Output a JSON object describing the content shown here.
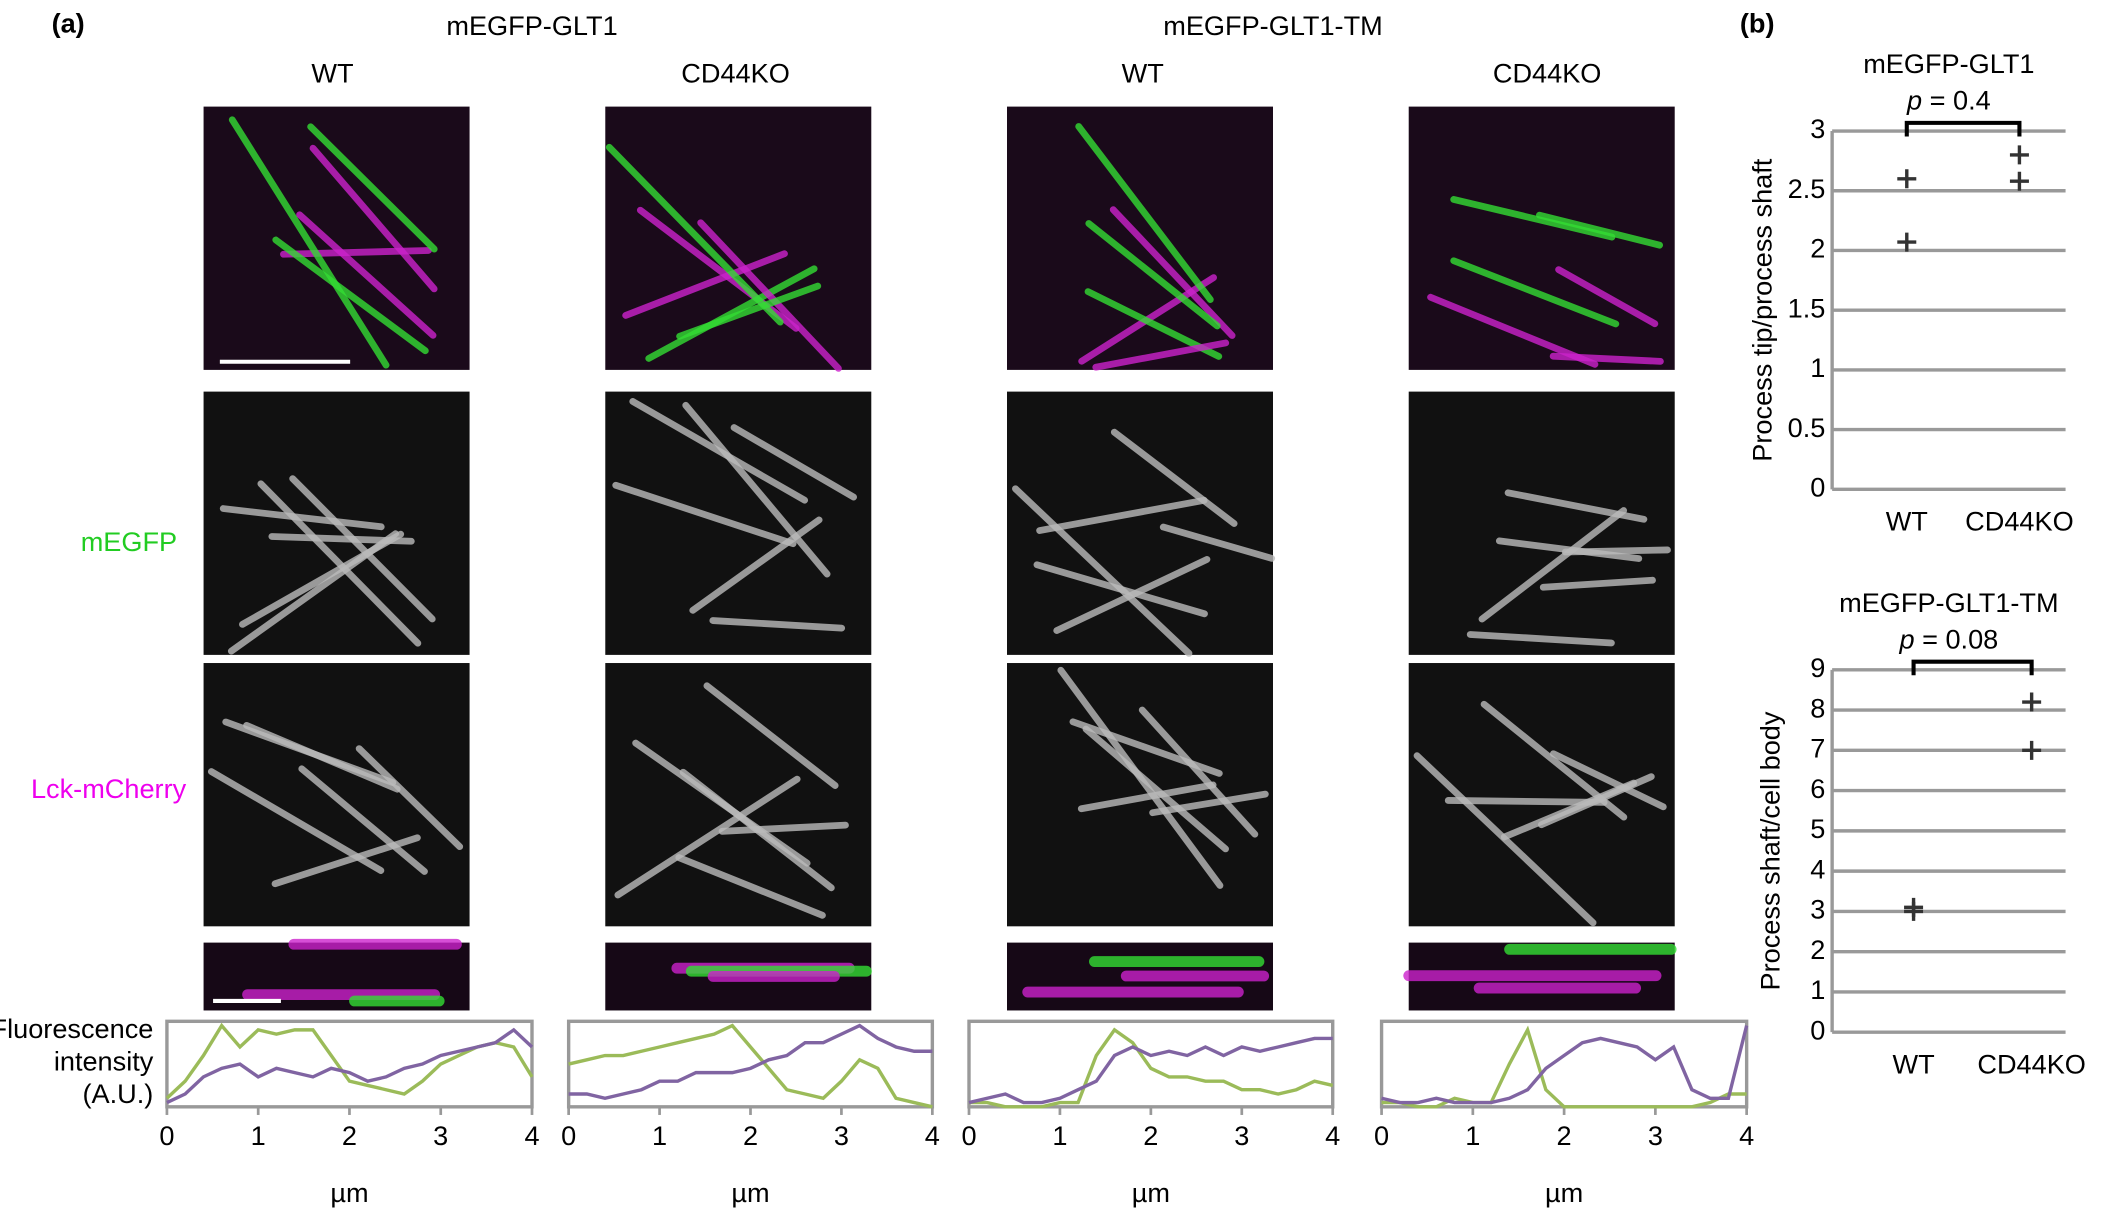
{
  "panel_labels": [
    "(a)",
    "(b)"
  ],
  "groups": [
    "mEGFP-GLT1",
    "mEGFP-GLT1-TM"
  ],
  "columns": [
    "WT",
    "CD44KO",
    "WT",
    "CD44KO"
  ],
  "rows": [
    "mEGFP",
    "Lck-mCherry"
  ],
  "chart_data": [
    {
      "type": "line",
      "ylabel": [
        "Fluorescence",
        "intensity",
        "(A.U.)"
      ],
      "xlabel": "µm",
      "x": [
        0,
        0.2,
        0.4,
        0.6,
        0.8,
        1,
        1.2,
        1.4,
        1.6,
        1.8,
        2,
        2.2,
        2.4,
        2.6,
        2.8,
        3,
        3.2,
        3.4,
        3.6,
        3.8,
        4
      ],
      "xlim": [
        0,
        4
      ],
      "xticks": [
        0,
        1,
        2,
        3,
        4
      ],
      "ylim": [
        0,
        1
      ],
      "series": [
        {
          "color": "#9bbb59",
          "values": [
            0.1,
            0.3,
            0.6,
            0.95,
            0.7,
            0.9,
            0.85,
            0.9,
            0.9,
            0.6,
            0.3,
            0.25,
            0.2,
            0.15,
            0.3,
            0.5,
            0.6,
            0.7,
            0.75,
            0.7,
            0.35
          ]
        },
        {
          "color": "#8064a2",
          "values": [
            0.05,
            0.15,
            0.35,
            0.45,
            0.5,
            0.35,
            0.45,
            0.4,
            0.35,
            0.45,
            0.4,
            0.3,
            0.35,
            0.45,
            0.5,
            0.6,
            0.65,
            0.7,
            0.75,
            0.9,
            0.7
          ]
        }
      ]
    },
    {
      "type": "line",
      "xlabel": "µm",
      "x": [
        0,
        0.2,
        0.4,
        0.6,
        0.8,
        1,
        1.2,
        1.4,
        1.6,
        1.8,
        2,
        2.2,
        2.4,
        2.6,
        2.8,
        3,
        3.2,
        3.4,
        3.6,
        3.8,
        4
      ],
      "xlim": [
        0,
        4
      ],
      "xticks": [
        0,
        1,
        2,
        3,
        4
      ],
      "ylim": [
        0,
        1
      ],
      "series": [
        {
          "color": "#9bbb59",
          "values": [
            0.5,
            0.55,
            0.6,
            0.6,
            0.65,
            0.7,
            0.75,
            0.8,
            0.85,
            0.95,
            0.7,
            0.45,
            0.2,
            0.15,
            0.1,
            0.3,
            0.55,
            0.45,
            0.1,
            0.05,
            0
          ]
        },
        {
          "color": "#8064a2",
          "values": [
            0.15,
            0.15,
            0.1,
            0.15,
            0.2,
            0.3,
            0.3,
            0.4,
            0.4,
            0.4,
            0.45,
            0.55,
            0.6,
            0.75,
            0.75,
            0.85,
            0.95,
            0.8,
            0.7,
            0.65,
            0.65
          ]
        }
      ]
    },
    {
      "type": "line",
      "xlabel": "µm",
      "x": [
        0,
        0.2,
        0.4,
        0.6,
        0.8,
        1,
        1.2,
        1.4,
        1.6,
        1.8,
        2,
        2.2,
        2.4,
        2.6,
        2.8,
        3,
        3.2,
        3.4,
        3.6,
        3.8,
        4
      ],
      "xlim": [
        0,
        4
      ],
      "xticks": [
        0,
        1,
        2,
        3,
        4
      ],
      "ylim": [
        0,
        1
      ],
      "series": [
        {
          "color": "#9bbb59",
          "values": [
            0.05,
            0.05,
            0,
            0,
            0,
            0.05,
            0.05,
            0.6,
            0.9,
            0.75,
            0.45,
            0.35,
            0.35,
            0.3,
            0.3,
            0.2,
            0.2,
            0.15,
            0.2,
            0.3,
            0.25
          ]
        },
        {
          "color": "#8064a2",
          "values": [
            0.05,
            0.1,
            0.15,
            0.05,
            0.05,
            0.1,
            0.2,
            0.3,
            0.6,
            0.7,
            0.6,
            0.65,
            0.6,
            0.7,
            0.6,
            0.7,
            0.65,
            0.7,
            0.75,
            0.8,
            0.8
          ]
        }
      ]
    },
    {
      "type": "line",
      "xlabel": "µm",
      "x": [
        0,
        0.2,
        0.4,
        0.6,
        0.8,
        1,
        1.2,
        1.4,
        1.6,
        1.8,
        2,
        2.2,
        2.4,
        2.6,
        2.8,
        3,
        3.2,
        3.4,
        3.6,
        3.8,
        4
      ],
      "xlim": [
        0,
        4
      ],
      "xticks": [
        0,
        1,
        2,
        3,
        4
      ],
      "ylim": [
        0,
        1
      ],
      "series": [
        {
          "color": "#9bbb59",
          "values": [
            0.05,
            0.05,
            0,
            0,
            0.1,
            0.05,
            0.05,
            0.5,
            0.9,
            0.2,
            0,
            0,
            0,
            0,
            0,
            0,
            0,
            0,
            0.05,
            0.15,
            0.15
          ]
        },
        {
          "color": "#8064a2",
          "values": [
            0.1,
            0.05,
            0.05,
            0.1,
            0.05,
            0.05,
            0.05,
            0.1,
            0.2,
            0.45,
            0.6,
            0.75,
            0.8,
            0.75,
            0.7,
            0.55,
            0.7,
            0.2,
            0.1,
            0.1,
            0.95
          ]
        }
      ]
    },
    {
      "type": "strip",
      "title": "mEGFP-GLT1",
      "annotation_symbol": "p",
      "annotation": "= 0.4",
      "ylabel": "Process tip/process shaft",
      "categories": [
        "WT",
        "CD44KO"
      ],
      "values": [
        [
          2.6,
          2.07
        ],
        [
          2.8,
          2.58
        ]
      ],
      "color": "#333333",
      "ylim": [
        0,
        3
      ],
      "yticks": [
        0,
        0.5,
        1,
        1.5,
        2,
        2.5,
        3
      ],
      "grid": true
    },
    {
      "type": "strip",
      "title": "mEGFP-GLT1-TM",
      "annotation_symbol": "p",
      "annotation": "= 0.08",
      "ylabel": "Process shaft/cell body",
      "categories": [
        "WT",
        "CD44KO"
      ],
      "values": [
        [
          3.1,
          3.0
        ],
        [
          8.2,
          7.0
        ]
      ],
      "color": "#333333",
      "ylim": [
        0,
        9
      ],
      "yticks": [
        0,
        1,
        2,
        3,
        4,
        5,
        6,
        7,
        8,
        9
      ],
      "grid": true
    }
  ]
}
